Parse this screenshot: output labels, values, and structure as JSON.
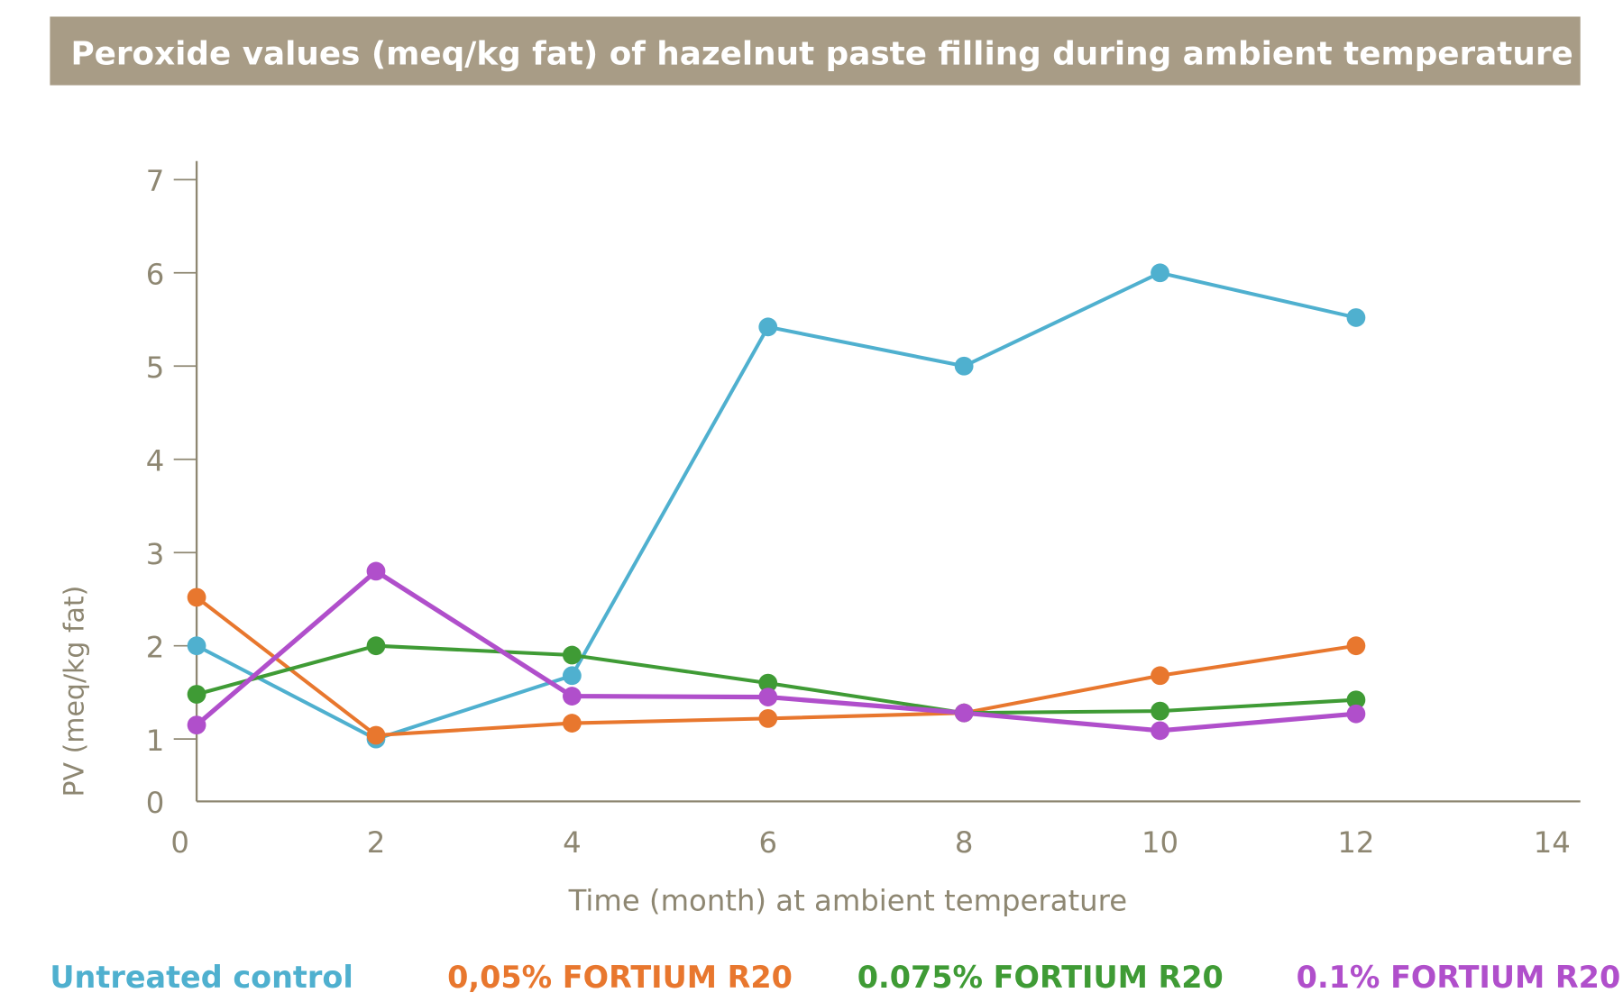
{
  "chart_data": {
    "type": "line",
    "title": "Peroxide values (meq/kg fat) of hazelnut paste filling during ambient temperature",
    "xlabel": "Time (month) at ambient temperature",
    "ylabel": "PV (meq/kg fat)",
    "xlim": [
      0,
      14
    ],
    "ylim": [
      0,
      7
    ],
    "xticks": [
      "0",
      "2",
      "4",
      "6",
      "8",
      "10",
      "12",
      "14"
    ],
    "yticks": [
      "0",
      "1",
      "2",
      "3",
      "4",
      "5",
      "6",
      "7"
    ],
    "grid": false,
    "legend_placement": "bottom",
    "x": [
      0,
      2,
      4,
      6,
      8,
      10,
      12
    ],
    "series": [
      {
        "name": "Untreated control",
        "color": "#4fb0cf",
        "values": [
          2.0,
          1.0,
          1.68,
          5.42,
          5.0,
          6.0,
          5.52
        ]
      },
      {
        "name": "0,05% FORTIUM R20",
        "color": "#e8772e",
        "values": [
          2.52,
          1.04,
          1.17,
          1.22,
          1.28,
          1.68,
          2.0
        ]
      },
      {
        "name": "0.075% FORTIUM R20",
        "color": "#3f9b35",
        "values": [
          1.48,
          2.0,
          1.9,
          1.6,
          1.28,
          1.3,
          1.42
        ]
      },
      {
        "name": "0.1% FORTIUM R20",
        "color": "#b04fcb",
        "values": [
          1.15,
          2.8,
          1.46,
          1.45,
          1.28,
          1.09,
          1.27
        ]
      }
    ],
    "colors": {
      "title_bar": "#a89c86",
      "axis": "#8e8772"
    }
  }
}
